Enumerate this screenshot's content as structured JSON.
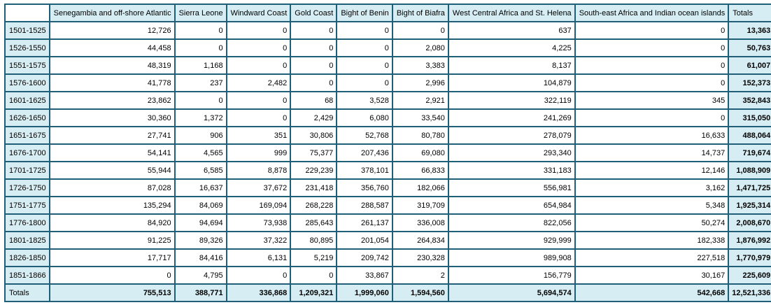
{
  "page": {
    "corner_label": "",
    "totals_column_label": "Totals",
    "totals_row_label": "Totals"
  },
  "colors": {
    "accent_bg": "#d6edf3",
    "border": "#1f5f78",
    "cell_bg": "#ffffff",
    "text": "#000000"
  },
  "chart_data": {
    "type": "table",
    "columns": [
      "Senegambia and off-shore Atlantic",
      "Sierra Leone",
      "Windward Coast",
      "Gold Coast",
      "Bight of Benin",
      "Bight of Biafra",
      "West Central Africa and St. Helena",
      "South-east Africa and Indian ocean islands"
    ],
    "row_label_key": "period",
    "rows": [
      {
        "period": "1501-1525",
        "values": [
          12726,
          0,
          0,
          0,
          0,
          0,
          637,
          0
        ],
        "total": 13363
      },
      {
        "period": "1526-1550",
        "values": [
          44458,
          0,
          0,
          0,
          0,
          2080,
          4225,
          0
        ],
        "total": 50763
      },
      {
        "period": "1551-1575",
        "values": [
          48319,
          1168,
          0,
          0,
          0,
          3383,
          8137,
          0
        ],
        "total": 61007
      },
      {
        "period": "1576-1600",
        "values": [
          41778,
          237,
          2482,
          0,
          0,
          2996,
          104879,
          0
        ],
        "total": 152373
      },
      {
        "period": "1601-1625",
        "values": [
          23862,
          0,
          0,
          68,
          3528,
          2921,
          322119,
          345
        ],
        "total": 352843
      },
      {
        "period": "1626-1650",
        "values": [
          30360,
          1372,
          0,
          2429,
          6080,
          33540,
          241269,
          0
        ],
        "total": 315050
      },
      {
        "period": "1651-1675",
        "values": [
          27741,
          906,
          351,
          30806,
          52768,
          80780,
          278079,
          16633
        ],
        "total": 488064
      },
      {
        "period": "1676-1700",
        "values": [
          54141,
          4565,
          999,
          75377,
          207436,
          69080,
          293340,
          14737
        ],
        "total": 719674
      },
      {
        "period": "1701-1725",
        "values": [
          55944,
          6585,
          8878,
          229239,
          378101,
          66833,
          331183,
          12146
        ],
        "total": 1088909
      },
      {
        "period": "1726-1750",
        "values": [
          87028,
          16637,
          37672,
          231418,
          356760,
          182066,
          556981,
          3162
        ],
        "total": 1471725
      },
      {
        "period": "1751-1775",
        "values": [
          135294,
          84069,
          169094,
          268228,
          288587,
          319709,
          654984,
          5348
        ],
        "total": 1925314
      },
      {
        "period": "1776-1800",
        "values": [
          84920,
          94694,
          73938,
          285643,
          261137,
          336008,
          822056,
          50274
        ],
        "total": 2008670
      },
      {
        "period": "1801-1825",
        "values": [
          91225,
          89326,
          37322,
          80895,
          201054,
          264834,
          929999,
          182338
        ],
        "total": 1876992
      },
      {
        "period": "1826-1850",
        "values": [
          17717,
          84416,
          6131,
          5219,
          209742,
          230328,
          989908,
          227518
        ],
        "total": 1770979
      },
      {
        "period": "1851-1866",
        "values": [
          0,
          4795,
          0,
          0,
          33867,
          2,
          156779,
          30167
        ],
        "total": 225609
      }
    ],
    "column_totals": [
      755513,
      388771,
      336868,
      1209321,
      1999060,
      1594560,
      5694574,
      542668
    ],
    "grand_total": 12521336
  }
}
